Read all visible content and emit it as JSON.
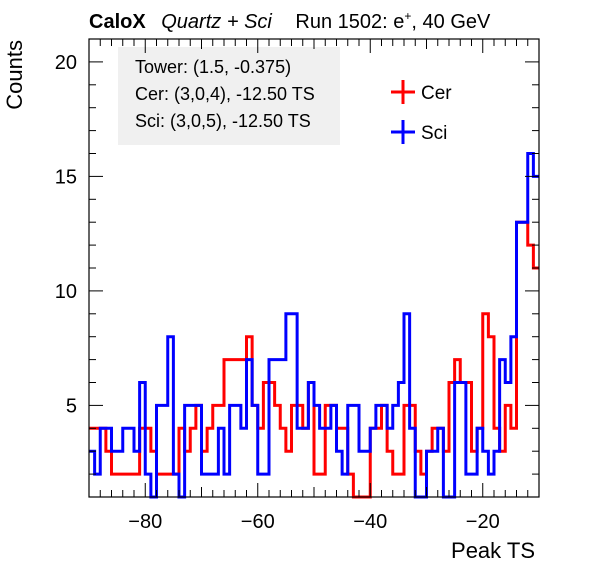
{
  "header": {
    "experiment": "CaloX",
    "config": "Quartz + Sci",
    "run_prefix": "Run 1502: e",
    "run_sup": "+",
    "run_suffix": ", 40 GeV"
  },
  "info_box": {
    "line1": "Tower: (1.5, -0.375)",
    "line2": "Cer: (3,0,4), -12.50 TS",
    "line3": "Sci: (3,0,5), -12.50 TS"
  },
  "colors": {
    "cer": "#ff0000",
    "sci": "#0000ff",
    "axis": "#000000"
  },
  "chart_data": {
    "type": "line",
    "style": "step-histogram",
    "xlabel": "Peak TS",
    "ylabel": "Counts",
    "xlim": [
      -90,
      -10
    ],
    "ylim": [
      1,
      21
    ],
    "x_ticks": [
      -80,
      -60,
      -40,
      -20
    ],
    "y_ticks": [
      5,
      10,
      15,
      20
    ],
    "legend_position": "top-right",
    "bin_width": 1,
    "x_start": -90,
    "series": [
      {
        "name": "Cer",
        "color": "#ff0000",
        "values": [
          4,
          4,
          4,
          3,
          2,
          2,
          2,
          2,
          2,
          4,
          4,
          3,
          2,
          2,
          2,
          2,
          4,
          3,
          4,
          5,
          3,
          4,
          5,
          5,
          7,
          7,
          7,
          7,
          8,
          5,
          4,
          6,
          6,
          5,
          4,
          3,
          5,
          5,
          4,
          6,
          2,
          2,
          5,
          5,
          4,
          4,
          2,
          1,
          1,
          1,
          4,
          4,
          5,
          3,
          2,
          2,
          5,
          5,
          3,
          2,
          3,
          4,
          4,
          3,
          6,
          7,
          6,
          6,
          3,
          4,
          9,
          8,
          4,
          3,
          5,
          4,
          13,
          13,
          12,
          11
        ]
      },
      {
        "name": "Sci",
        "color": "#0000ff",
        "values": [
          3,
          2,
          4,
          4,
          3,
          3,
          4,
          4,
          3,
          6,
          2,
          1,
          5,
          5,
          8,
          2,
          1,
          5,
          5,
          5,
          2,
          2,
          2,
          4,
          2,
          5,
          5,
          4,
          7,
          5,
          2,
          2,
          7,
          7,
          7,
          9,
          9,
          4,
          4,
          6,
          5,
          4,
          4,
          5,
          3,
          2,
          5,
          5,
          3,
          3,
          4,
          5,
          5,
          4,
          5,
          6,
          9,
          4,
          1,
          1,
          3,
          3,
          4,
          1,
          1,
          6,
          6,
          2,
          2,
          4,
          3,
          2,
          3,
          7,
          6,
          8,
          13,
          13,
          16,
          15
        ]
      }
    ]
  }
}
